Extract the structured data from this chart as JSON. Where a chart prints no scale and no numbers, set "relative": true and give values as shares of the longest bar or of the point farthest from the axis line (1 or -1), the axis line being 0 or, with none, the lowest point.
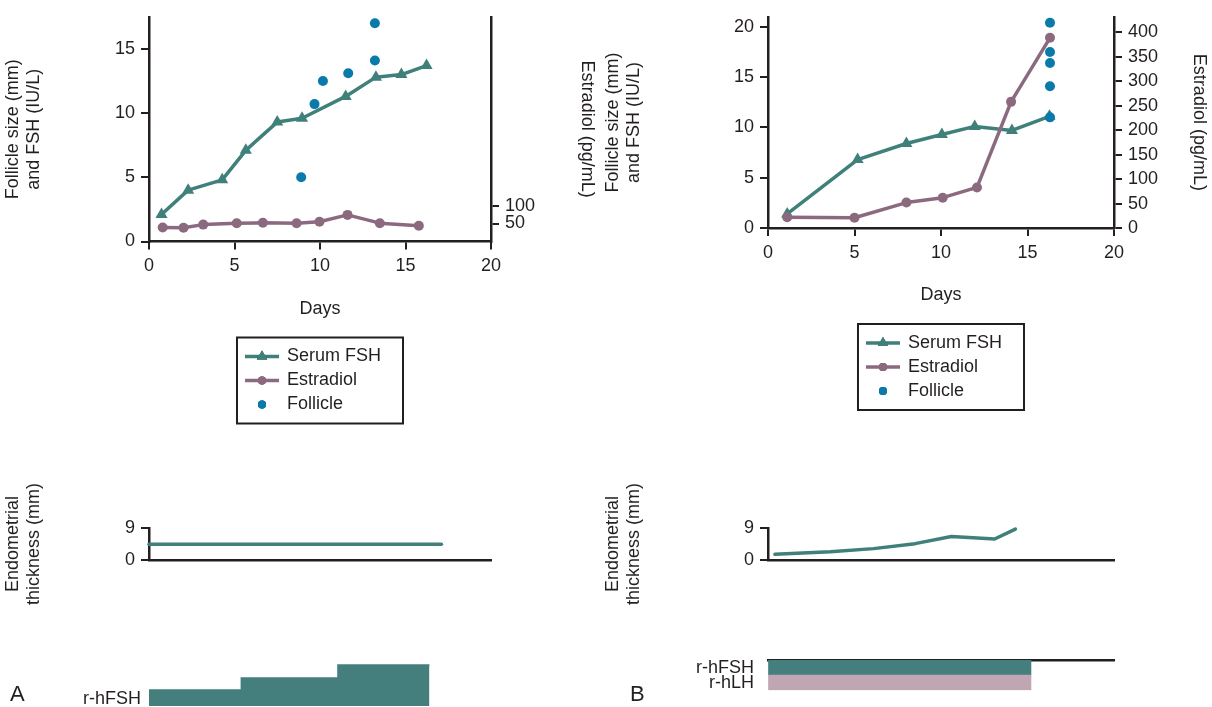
{
  "chart_data": [
    {
      "type": "line",
      "xlabel": "Days",
      "ylabel": "Follicle size (mm) and FSH (IU/L)",
      "y2label": "Estradiol (pg/mL)",
      "xlim": [
        0,
        20
      ],
      "xticks": [
        0,
        5,
        10,
        15,
        20
      ],
      "ylim": [
        0,
        17.5
      ],
      "yticks": [
        0,
        5,
        10,
        15
      ],
      "y2lim": [
        0,
        625
      ],
      "y2ticks": [
        50,
        100
      ],
      "grid": false,
      "legend": "bottom",
      "series": [
        {
          "name": "Serum FSH",
          "color": "#3f807b",
          "marker": "triangle",
          "x": [
            0.73,
            2.29,
            4.28,
            5.66,
            7.5,
            8.95,
            11.5,
            13.27,
            14.76,
            16.23
          ],
          "values": [
            2.1,
            4,
            4.8,
            7.1,
            9.3,
            9.6,
            11.3,
            12.8,
            13,
            13.7
          ]
        },
        {
          "name": "Estradiol",
          "color": "#8b6a80",
          "marker": "circle",
          "axis": "y2",
          "x": [
            0.8,
            2.02,
            3.17,
            5.13,
            6.66,
            8.63,
            9.97,
            11.61,
            13.5,
            15.78
          ],
          "values": [
            39,
            38,
            47,
            51,
            52,
            51,
            55,
            74,
            51,
            44
          ]
        },
        {
          "name": "Follicle",
          "type": "scatter",
          "color": "#0a7aab",
          "marker": "circle",
          "x": [
            8.9,
            9.68,
            10.17,
            11.65,
            13.21,
            13.21
          ],
          "values": [
            5,
            10.7,
            12.5,
            13.1,
            14.1,
            17
          ]
        }
      ]
    },
    {
      "type": "line",
      "xlabel": "Days",
      "ylabel": "Follicle size (mm) and FSH (IU/L)",
      "y2label": "Estradiol (pg/mL)",
      "xlim": [
        0,
        20
      ],
      "xticks": [
        0,
        5,
        10,
        15,
        20
      ],
      "ylim": [
        0,
        21
      ],
      "yticks": [
        0,
        5,
        10,
        15,
        20
      ],
      "y2lim": [
        0,
        432
      ],
      "y2ticks": [
        0,
        50,
        100,
        150,
        200,
        250,
        300,
        350,
        400
      ],
      "grid": false,
      "legend": "bottom",
      "series": [
        {
          "name": "Serum FSH",
          "color": "#3f807b",
          "marker": "triangle",
          "x": [
            1.11,
            5.18,
            8,
            10.05,
            11.95,
            14.1,
            16.27
          ],
          "values": [
            1.4,
            6.8,
            8.4,
            9.3,
            10.1,
            9.7,
            11.1
          ]
        },
        {
          "name": "Estradiol",
          "color": "#8b6a80",
          "marker": "circle",
          "axis": "y2",
          "x": [
            1.11,
            5,
            8,
            10.1,
            12.08,
            14.05,
            16.3
          ],
          "values": [
            22,
            21,
            52,
            62,
            83,
            258,
            389
          ]
        },
        {
          "name": "Follicle",
          "type": "scatter",
          "color": "#0a7aab",
          "marker": "circle",
          "x": [
            16.3,
            16.3,
            16.3,
            16.3,
            16.3
          ],
          "values": [
            20.4,
            17.5,
            16.4,
            14.1,
            11
          ]
        }
      ]
    },
    {
      "type": "line",
      "ylabel": "Endometrial thickness (mm)",
      "xlim": [
        0,
        20
      ],
      "ylim": [
        0,
        9
      ],
      "yticks": [
        0,
        9
      ],
      "tick_labels": "y",
      "grid": false,
      "series": [
        {
          "color": "#3f807b",
          "x": [
            0,
            17.1
          ],
          "values": [
            4.4,
            4.4
          ]
        }
      ]
    },
    {
      "type": "line",
      "ylabel": "Endometrial thickness (mm)",
      "xlim": [
        0,
        20
      ],
      "ylim": [
        0,
        9
      ],
      "yticks": [
        0,
        9
      ],
      "tick_labels": "y",
      "grid": false,
      "series": [
        {
          "color": "#3f807b",
          "x": [
            0.4,
            3.6,
            6.1,
            8.5,
            10.6,
            13.1,
            14.3
          ],
          "values": [
            1.6,
            2.3,
            3.2,
            4.6,
            6.6,
            5.9,
            8.7
          ]
        }
      ]
    },
    {
      "type": "area",
      "relative": true,
      "x": [
        0,
        5.4,
        5.4,
        11.05,
        11.05,
        16.4
      ],
      "xlim": [
        0,
        20
      ],
      "tick_labels": false,
      "annotations": [
        "A"
      ],
      "series": [
        {
          "name": "r-hFSH",
          "color": "#447f7e",
          "values": [
            0.39,
            0.39,
            0.68,
            0.68,
            1,
            1
          ]
        }
      ]
    },
    {
      "type": "bar",
      "orientation": "horizontal",
      "categories": [
        "r-hFSH",
        "r-hLH"
      ],
      "values": [
        15.2,
        15.2
      ],
      "colors": [
        "#447f7e",
        "#c0a5b2"
      ],
      "xlim": [
        0,
        20
      ],
      "tick_labels": "y",
      "annotations": [
        "B"
      ]
    }
  ]
}
